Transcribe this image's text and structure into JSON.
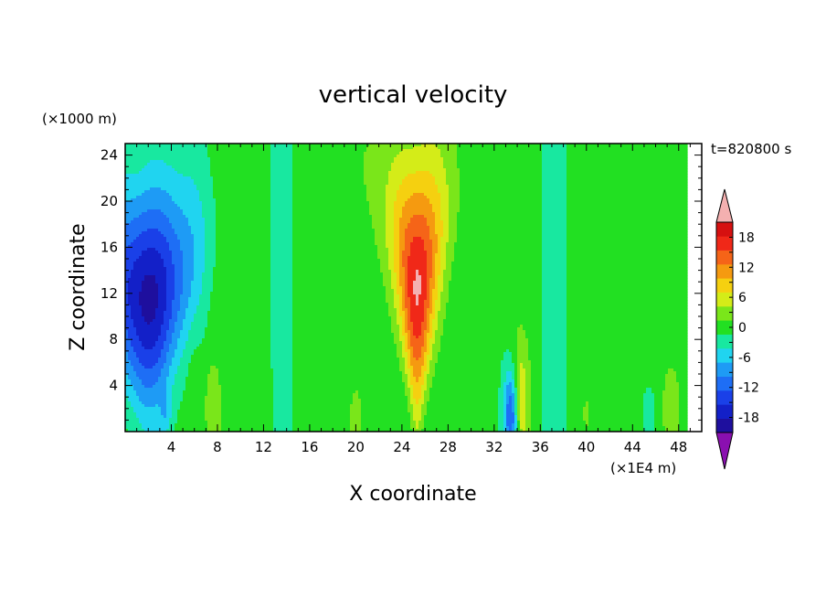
{
  "chart_data": {
    "type": "heatmap",
    "title": "vertical velocity",
    "xlabel": "X coordinate",
    "ylabel": "Z coordinate",
    "x_unit": "(×1E4 m)",
    "y_unit": "(×1000 m)",
    "time_label": "t=820800 s",
    "xlim": [
      0,
      50
    ],
    "ylim": [
      0,
      25
    ],
    "x_ticks": [
      "4",
      "8",
      "12",
      "16",
      "20",
      "24",
      "28",
      "32",
      "36",
      "40",
      "44",
      "48"
    ],
    "y_ticks": [
      "4",
      "8",
      "12",
      "16",
      "20",
      "24"
    ],
    "colorbar": {
      "levels": [
        -21,
        -18,
        -15,
        -12,
        -9,
        -6,
        -3,
        0,
        3,
        6,
        9,
        12,
        15,
        18,
        21
      ],
      "tick_labels": [
        "-18",
        "-12",
        "-6",
        "0",
        "6",
        "12",
        "18"
      ],
      "colors": [
        "#1e0f9e",
        "#1320c8",
        "#1a40e8",
        "#1e6ef5",
        "#1e9bf5",
        "#20d4f0",
        "#18e8a0",
        "#22e022",
        "#7ae61a",
        "#d4ec18",
        "#f5d010",
        "#f59a10",
        "#f56418",
        "#f02818",
        "#d61010",
        "#f4b0b0"
      ],
      "under_color": "#8a0fb0",
      "over_color": "#f4b0b0"
    },
    "features": [
      {
        "type": "downdraft",
        "x_center": 1.5,
        "z_center": 12,
        "min_value": -20
      },
      {
        "type": "updraft",
        "x_center": 25.3,
        "z_center": 12,
        "max_value": 21
      },
      {
        "type": "dipole",
        "x_center": 33.8,
        "z_center": 2,
        "min_value": -15,
        "max_value": 9
      }
    ]
  }
}
